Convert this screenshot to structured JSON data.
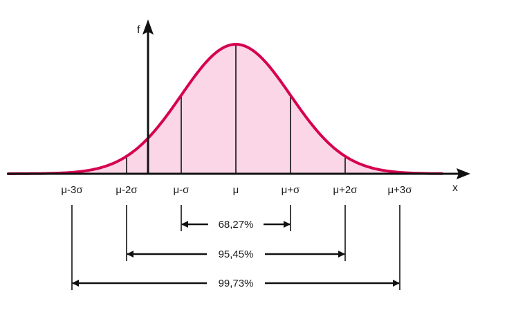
{
  "axes": {
    "y_label": "f",
    "x_label": "x"
  },
  "tick_labels": [
    "μ-3σ",
    "μ-2σ",
    "μ-σ",
    "μ",
    "μ+σ",
    "μ+2σ",
    "μ+3σ"
  ],
  "intervals": [
    {
      "label": "68,27%",
      "sigma": 1
    },
    {
      "label": "95,45%",
      "sigma": 2
    },
    {
      "label": "99,73%",
      "sigma": 3
    }
  ],
  "colors": {
    "curve": "#d6004f",
    "fill": "#fbd6e6",
    "axis": "#111111",
    "guide": "#111111"
  }
}
